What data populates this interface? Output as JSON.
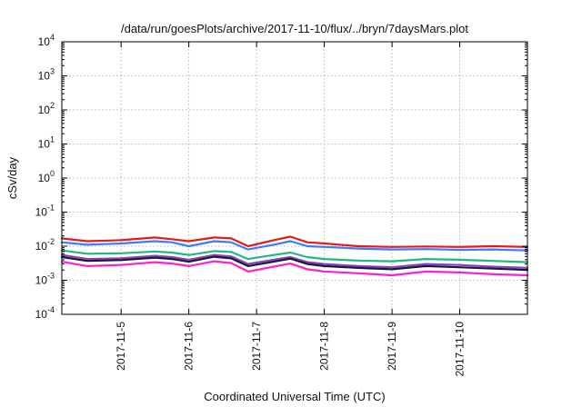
{
  "chart_data": {
    "type": "line",
    "title": "/data/run/goesPlots/archive/2017-11-10/flux/../bryn/7daysMars.plot",
    "xlabel": "Coordinated Universal Time (UTC)",
    "ylabel": "cSv/day",
    "yscale": "log",
    "ylim": [
      0.0001,
      10000
    ],
    "y_ticks": [
      {
        "value": 0.0001,
        "base": "10",
        "exp": "-4"
      },
      {
        "value": 0.001,
        "base": "10",
        "exp": "-3"
      },
      {
        "value": 0.01,
        "base": "10",
        "exp": "-2"
      },
      {
        "value": 0.1,
        "base": "10",
        "exp": "-1"
      },
      {
        "value": 1,
        "base": "10",
        "exp": "0"
      },
      {
        "value": 10,
        "base": "10",
        "exp": "1"
      },
      {
        "value": 100,
        "base": "10",
        "exp": "2"
      },
      {
        "value": 1000,
        "base": "10",
        "exp": "3"
      },
      {
        "value": 10000,
        "base": "10",
        "exp": "4"
      }
    ],
    "xlim": [
      "2017-11-04T03:00",
      "2017-11-10T23:59"
    ],
    "x_ticks": [
      "2017-11-5",
      "2017-11-6",
      "2017-11-7",
      "2017-11-8",
      "2017-11-9",
      "2017-11-10"
    ],
    "x_tick_dates": [
      "2017-11-05",
      "2017-11-06",
      "2017-11-07",
      "2017-11-08",
      "2017-11-09",
      "2017-11-10"
    ],
    "grid": true,
    "legend": "none",
    "x": [
      "2017-11-04T03:00",
      "2017-11-04T12:00",
      "2017-11-05T00:00",
      "2017-11-05T12:00",
      "2017-11-05T18:00",
      "2017-11-06T00:00",
      "2017-11-06T09:00",
      "2017-11-06T15:00",
      "2017-11-06T21:00",
      "2017-11-07T06:00",
      "2017-11-07T12:00",
      "2017-11-07T18:00",
      "2017-11-08T00:00",
      "2017-11-08T12:00",
      "2017-11-09T00:00",
      "2017-11-09T12:00",
      "2017-11-10T00:00",
      "2017-11-10T12:00",
      "2017-11-10T23:59"
    ],
    "series": [
      {
        "color": "#e41a1c",
        "values": [
          0.017,
          0.014,
          0.015,
          0.018,
          0.016,
          0.014,
          0.018,
          0.017,
          0.01,
          0.015,
          0.019,
          0.013,
          0.012,
          0.01,
          0.0095,
          0.0098,
          0.0095,
          0.01,
          0.0095
        ]
      },
      {
        "color": "#3a7bff",
        "values": [
          0.013,
          0.011,
          0.012,
          0.014,
          0.013,
          0.01,
          0.014,
          0.013,
          0.008,
          0.011,
          0.014,
          0.01,
          0.0095,
          0.0085,
          0.008,
          0.0082,
          0.0078,
          0.008,
          0.0075
        ]
      },
      {
        "color": "#21b683",
        "values": [
          0.0075,
          0.006,
          0.0062,
          0.007,
          0.0065,
          0.0055,
          0.0072,
          0.0068,
          0.0042,
          0.0055,
          0.0065,
          0.0048,
          0.0042,
          0.0038,
          0.0036,
          0.0042,
          0.004,
          0.0037,
          0.0034
        ]
      },
      {
        "color": "#8a3ec2",
        "values": [
          0.0055,
          0.0042,
          0.0044,
          0.0052,
          0.0048,
          0.004,
          0.0055,
          0.005,
          0.003,
          0.004,
          0.0048,
          0.0034,
          0.003,
          0.0026,
          0.0024,
          0.003,
          0.0028,
          0.0025,
          0.0023
        ]
      },
      {
        "color": "#1a1a3a",
        "values": [
          0.0048,
          0.0037,
          0.0039,
          0.0046,
          0.0042,
          0.0035,
          0.0049,
          0.0044,
          0.0026,
          0.0035,
          0.0043,
          0.003,
          0.0026,
          0.0023,
          0.0021,
          0.0026,
          0.0024,
          0.0022,
          0.002
        ]
      },
      {
        "color": "#ff1fd2",
        "values": [
          0.0035,
          0.0026,
          0.0028,
          0.0034,
          0.0031,
          0.0026,
          0.0036,
          0.0032,
          0.0018,
          0.0025,
          0.0031,
          0.0021,
          0.0018,
          0.0016,
          0.0014,
          0.0018,
          0.0017,
          0.0015,
          0.0014
        ]
      }
    ]
  }
}
